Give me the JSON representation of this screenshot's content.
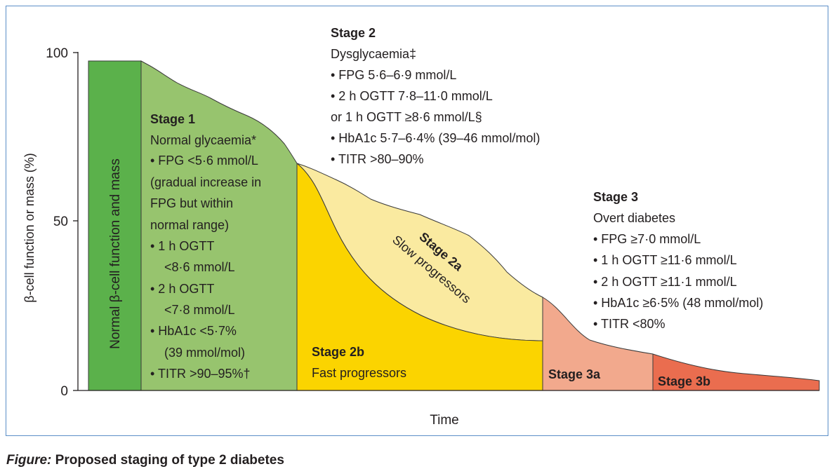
{
  "axis": {
    "y_label": "β-cell function or mass (%)",
    "y_ticks": [
      "100",
      "50",
      "0"
    ],
    "x_label": "Time"
  },
  "normal": {
    "label": "Normal β-cell function and mass"
  },
  "stage1": {
    "title": "Stage 1",
    "subtitle": "Normal glycaemia*",
    "lines": [
      "• FPG <5·6 mmol/L",
      "(gradual increase in",
      "FPG but within",
      "normal range)",
      "• 1 h OGTT",
      "<8·6 mmol/L",
      "• 2 h OGTT",
      "<7·8 mmol/L",
      "• HbA1c <5·7%",
      "(39 mmol/mol)",
      "• TITR >90–95%†"
    ]
  },
  "stage2": {
    "title": "Stage 2",
    "subtitle": "Dysglycaemia‡",
    "lines": [
      "• FPG 5·6–6·9 mmol/L",
      "• 2 h OGTT 7·8–11·0 mmol/L",
      "or 1 h OGTT ≥8·6 mmol/L§",
      "• HbA1c 5·7–6·4% (39–46 mmol/mol)",
      "• TITR >80–90%"
    ]
  },
  "stage2a": {
    "title": "Stage 2a",
    "subtitle": "Slow progressors"
  },
  "stage2b": {
    "title": "Stage 2b",
    "subtitle": "Fast progressors"
  },
  "stage3": {
    "title": "Stage 3",
    "subtitle": "Overt diabetes",
    "lines": [
      "• FPG ≥7·0 mmol/L",
      "• 1 h OGTT ≥11·6 mmol/L",
      "• 2 h OGTT ≥11·1 mmol/L",
      "• HbA1c ≥6·5% (48 mmol/mol)",
      "• TITR <80%"
    ]
  },
  "stage3a": {
    "title": "Stage 3a"
  },
  "stage3b": {
    "title": "Stage 3b"
  },
  "caption": {
    "label": "Figure:",
    "title": "Proposed staging of type 2 diabetes"
  },
  "colors": {
    "normal": "#5bb14b",
    "stage1": "#97c46e",
    "stage2_slow": "#faeaa0",
    "stage2_fast": "#fbd400",
    "stage3a": "#f2a98d",
    "stage3b": "#ea6d4f",
    "frame": "#5b8ec7"
  }
}
